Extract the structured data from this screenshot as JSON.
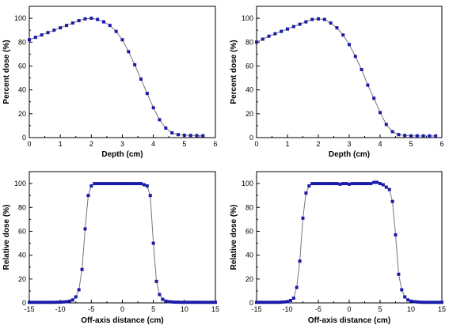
{
  "chart_data": [
    {
      "id": "pdd-left",
      "type": "scatter",
      "xlabel": "Depth (cm)",
      "ylabel": "Percent dose (%)",
      "xlim": [
        0,
        6
      ],
      "ylim": [
        0,
        110
      ],
      "xticks": [
        0,
        1,
        2,
        3,
        4,
        5,
        6
      ],
      "yticks": [
        0,
        20,
        40,
        60,
        80,
        100
      ],
      "grid": false,
      "marker_color": "#1a1aaa",
      "line_color": "#777777",
      "series": [
        {
          "x": [
            0.0,
            0.2,
            0.4,
            0.6,
            0.8,
            1.0,
            1.2,
            1.4,
            1.6,
            1.8,
            2.0,
            2.2,
            2.4,
            2.6,
            2.8,
            3.0,
            3.2,
            3.4,
            3.6,
            3.8,
            4.0,
            4.2,
            4.4,
            4.6,
            4.8,
            5.0,
            5.2,
            5.4,
            5.6
          ],
          "y": [
            82,
            84,
            86,
            88,
            90,
            92,
            94,
            96,
            98,
            99.5,
            100,
            99,
            97,
            94,
            89,
            82,
            72,
            61,
            49,
            37,
            25,
            15,
            8,
            4,
            2.5,
            2,
            1.8,
            1.7,
            1.6
          ]
        }
      ]
    },
    {
      "id": "pdd-right",
      "type": "scatter",
      "xlabel": "Depth (cm)",
      "ylabel": "Percent dose (%)",
      "xlim": [
        0,
        6
      ],
      "ylim": [
        0,
        110
      ],
      "xticks": [
        0,
        1,
        2,
        3,
        4,
        5,
        6
      ],
      "yticks": [
        0,
        20,
        40,
        60,
        80,
        100
      ],
      "grid": false,
      "marker_color": "#1a1aaa",
      "line_color": "#777777",
      "series": [
        {
          "x": [
            0.0,
            0.2,
            0.4,
            0.6,
            0.8,
            1.0,
            1.2,
            1.4,
            1.6,
            1.8,
            2.0,
            2.2,
            2.4,
            2.6,
            2.8,
            3.0,
            3.2,
            3.4,
            3.6,
            3.8,
            4.0,
            4.2,
            4.4,
            4.6,
            4.8,
            5.0,
            5.2,
            5.4,
            5.6,
            5.8
          ],
          "y": [
            80,
            82.5,
            85,
            87,
            89,
            91,
            93,
            95,
            97,
            99,
            99.5,
            99,
            96,
            92,
            86,
            78,
            68,
            57,
            44,
            33,
            21,
            11,
            5,
            2.5,
            1.8,
            1.5,
            1.5,
            1.4,
            1.4,
            1.4
          ]
        }
      ]
    },
    {
      "id": "profile-left",
      "type": "scatter",
      "xlabel": "Off-axis distance (cm)",
      "ylabel": "Relative dose (%)",
      "xlim": [
        -15,
        15
      ],
      "ylim": [
        0,
        110
      ],
      "xticks": [
        -15,
        -10,
        -5,
        0,
        5,
        10,
        15
      ],
      "yticks": [
        0,
        20,
        40,
        60,
        80,
        100
      ],
      "grid": false,
      "marker_color": "#1a1aaa",
      "line_color": "#777777",
      "series": [
        {
          "x": [
            -15,
            -14.5,
            -14,
            -13.5,
            -13,
            -12.5,
            -12,
            -11.5,
            -11,
            -10.5,
            -10,
            -9.5,
            -9,
            -8.5,
            -8,
            -7.5,
            -7,
            -6.5,
            -6,
            -5.5,
            -5,
            -4.5,
            -4,
            -3.5,
            -3,
            -2.5,
            -2,
            -1.5,
            -1,
            -0.5,
            0,
            0.5,
            1,
            1.5,
            2,
            2.5,
            3,
            3.5,
            4,
            4.5,
            5,
            5.5,
            6,
            6.5,
            7,
            7.5,
            8,
            8.5,
            9,
            9.5,
            10,
            10.5,
            11,
            11.5,
            12,
            12.5,
            13,
            13.5,
            14,
            14.5,
            15
          ],
          "y": [
            0.5,
            0.5,
            0.5,
            0.5,
            0.5,
            0.5,
            0.5,
            0.5,
            0.5,
            0.6,
            0.6,
            0.8,
            1,
            1.5,
            2.5,
            5,
            11,
            28,
            62,
            90,
            98,
            100,
            100,
            100,
            100,
            100,
            100,
            100,
            100,
            100,
            100,
            100,
            100,
            100,
            100,
            100,
            100,
            99,
            98,
            90,
            50,
            18,
            7,
            3,
            1.5,
            1,
            0.8,
            0.6,
            0.6,
            0.5,
            0.5,
            0.5,
            0.5,
            0.5,
            0.5,
            0.5,
            0.5,
            0.5,
            0.5,
            0.5,
            0.5
          ]
        }
      ]
    },
    {
      "id": "profile-right",
      "type": "scatter",
      "xlabel": "Off-axis distance (cm)",
      "ylabel": "Relative dose (%)",
      "xlim": [
        -15,
        15
      ],
      "ylim": [
        0,
        110
      ],
      "xticks": [
        -15,
        -10,
        -5,
        0,
        5,
        10,
        15
      ],
      "yticks": [
        0,
        20,
        40,
        60,
        80,
        100
      ],
      "grid": false,
      "marker_color": "#1a1aaa",
      "line_color": "#777777",
      "series": [
        {
          "x": [
            -15,
            -14.5,
            -14,
            -13.5,
            -13,
            -12.5,
            -12,
            -11.5,
            -11,
            -10.5,
            -10,
            -9.5,
            -9,
            -8.5,
            -8,
            -7.5,
            -7,
            -6.5,
            -6,
            -5.5,
            -5,
            -4.5,
            -4,
            -3.5,
            -3,
            -2.5,
            -2,
            -1.5,
            -1,
            -0.5,
            0,
            0.5,
            1,
            1.5,
            2,
            2.5,
            3,
            3.5,
            4,
            4.5,
            5,
            5.5,
            6,
            6.5,
            7,
            7.5,
            8,
            8.5,
            9,
            9.5,
            10,
            10.5,
            11,
            11.5,
            12,
            12.5,
            13,
            13.5,
            14,
            14.5,
            15
          ],
          "y": [
            0.5,
            0.5,
            0.5,
            0.5,
            0.5,
            0.5,
            0.5,
            0.5,
            0.6,
            0.8,
            1,
            2,
            4,
            13,
            35,
            71,
            92,
            98,
            100,
            100,
            100,
            100,
            100,
            100,
            100,
            100,
            100,
            99.5,
            100,
            100,
            99.5,
            100,
            100,
            100,
            100,
            100,
            100,
            100,
            101,
            101,
            100,
            99,
            97,
            95,
            85,
            57,
            24,
            11,
            5,
            2.5,
            1.5,
            1,
            0.8,
            0.6,
            0.5,
            0.5,
            0.5,
            0.5,
            0.5,
            0.5,
            0.5
          ]
        }
      ]
    }
  ]
}
